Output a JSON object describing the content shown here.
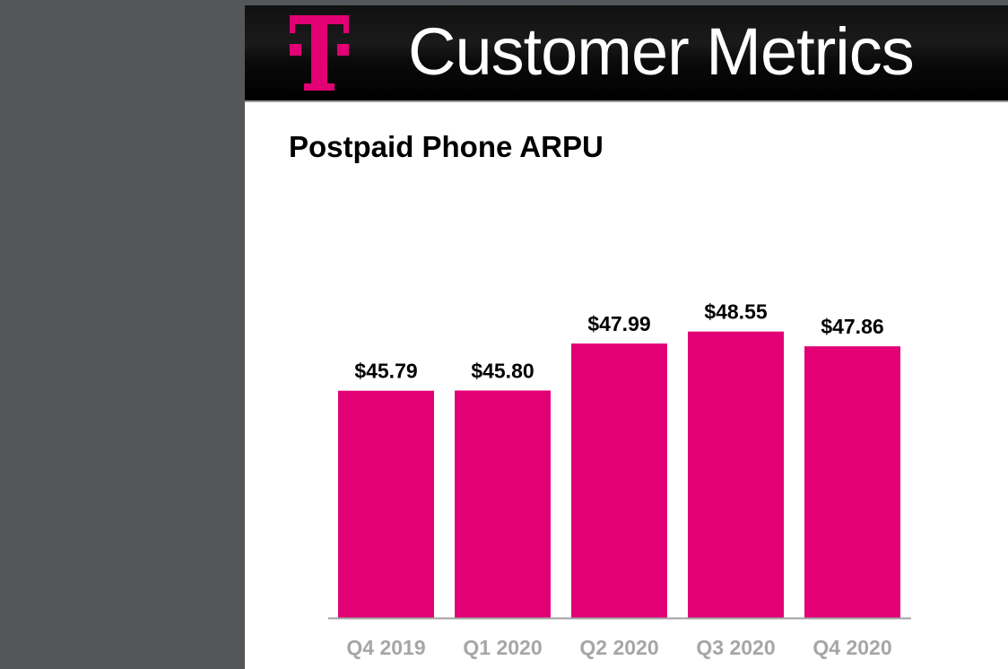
{
  "header": {
    "title": "Customer Metrics",
    "logo": "T-Mobile T logo",
    "brand_color": "#e20074"
  },
  "chart_data": {
    "type": "bar",
    "title": "Postpaid Phone ARPU",
    "categories": [
      "Q4 2019",
      "Q1 2020",
      "Q2 2020",
      "Q3 2020",
      "Q4 2020"
    ],
    "values": [
      45.79,
      45.8,
      47.99,
      48.55,
      47.86
    ],
    "data_labels": [
      "$45.79",
      "$45.80",
      "$47.99",
      "$48.55",
      "$47.86"
    ],
    "xlabel": "",
    "ylabel": "",
    "ylim": [
      35.2,
      50
    ],
    "grid": false,
    "bar_color": "#e20074"
  }
}
